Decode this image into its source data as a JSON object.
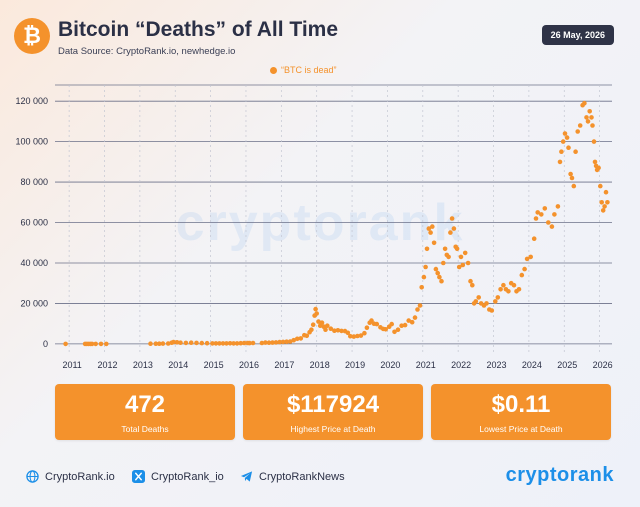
{
  "header": {
    "logo_symbol": "₿",
    "title": "Bitcoin “Deaths” of All Time",
    "source": "Data Source: CryptoRank.io, newhedge.io",
    "date": "26 May, 2026"
  },
  "watermark": "cryptorank",
  "chart_data": {
    "type": "scatter",
    "title": "Bitcoin “Deaths” of All Time",
    "xlabel": "",
    "ylabel": "",
    "xlim": [
      2010.6,
      2026.35
    ],
    "ylim": [
      -5000,
      128000
    ],
    "x_ticks": [
      "2011",
      "2012",
      "2013",
      "2014",
      "2015",
      "2016",
      "2017",
      "2018",
      "2019",
      "2020",
      "2021",
      "2022",
      "2023",
      "2024",
      "2025",
      "2026"
    ],
    "y_ticks": [
      {
        "value": 0,
        "label": "0"
      },
      {
        "value": 20000,
        "label": "20 000"
      },
      {
        "value": 40000,
        "label": "40 000"
      },
      {
        "value": 60000,
        "label": "60 000"
      },
      {
        "value": 80000,
        "label": "80 000"
      },
      {
        "value": 100000,
        "label": "100 000"
      },
      {
        "value": 120000,
        "label": "120 000"
      }
    ],
    "grid": true,
    "legend_position": "top-center",
    "series": [
      {
        "name": "“BTC is dead”",
        "color": "#f4922c",
        "points": [
          [
            2010.9,
            0.3
          ],
          [
            2011.45,
            15
          ],
          [
            2011.5,
            18
          ],
          [
            2011.55,
            14
          ],
          [
            2011.6,
            10
          ],
          [
            2011.65,
            6
          ],
          [
            2011.75,
            4
          ],
          [
            2011.9,
            3
          ],
          [
            2012.05,
            5
          ],
          [
            2013.3,
            100
          ],
          [
            2013.45,
            110
          ],
          [
            2013.55,
            100
          ],
          [
            2013.65,
            120
          ],
          [
            2013.8,
            200
          ],
          [
            2013.9,
            600
          ],
          [
            2013.95,
            900
          ],
          [
            2014.05,
            800
          ],
          [
            2014.15,
            600
          ],
          [
            2014.3,
            500
          ],
          [
            2014.45,
            600
          ],
          [
            2014.6,
            500
          ],
          [
            2014.75,
            380
          ],
          [
            2014.9,
            340
          ],
          [
            2015.05,
            230
          ],
          [
            2015.15,
            250
          ],
          [
            2015.25,
            240
          ],
          [
            2015.35,
            230
          ],
          [
            2015.45,
            230
          ],
          [
            2015.55,
            270
          ],
          [
            2015.65,
            230
          ],
          [
            2015.75,
            250
          ],
          [
            2015.85,
            360
          ],
          [
            2015.95,
            430
          ],
          [
            2016.05,
            420
          ],
          [
            2016.1,
            380
          ],
          [
            2016.2,
            420
          ],
          [
            2016.45,
            450
          ],
          [
            2016.55,
            650
          ],
          [
            2016.65,
            600
          ],
          [
            2016.75,
            650
          ],
          [
            2016.85,
            740
          ],
          [
            2016.95,
            900
          ],
          [
            2017.05,
            1000
          ],
          [
            2017.15,
            1100
          ],
          [
            2017.25,
            1200
          ],
          [
            2017.35,
            1800
          ],
          [
            2017.45,
            2500
          ],
          [
            2017.55,
            2700
          ],
          [
            2017.65,
            4300
          ],
          [
            2017.72,
            4000
          ],
          [
            2017.8,
            5800
          ],
          [
            2017.85,
            7000
          ],
          [
            2017.9,
            9500
          ],
          [
            2017.94,
            14000
          ],
          [
            2017.97,
            17200
          ],
          [
            2018.0,
            15000
          ],
          [
            2018.05,
            11000
          ],
          [
            2018.1,
            9000
          ],
          [
            2018.15,
            10500
          ],
          [
            2018.2,
            8500
          ],
          [
            2018.25,
            7000
          ],
          [
            2018.3,
            9000
          ],
          [
            2018.4,
            7500
          ],
          [
            2018.5,
            6500
          ],
          [
            2018.6,
            6700
          ],
          [
            2018.7,
            6400
          ],
          [
            2018.8,
            6300
          ],
          [
            2018.88,
            5500
          ],
          [
            2018.95,
            3800
          ],
          [
            2019.05,
            3600
          ],
          [
            2019.15,
            3900
          ],
          [
            2019.25,
            4100
          ],
          [
            2019.35,
            5300
          ],
          [
            2019.42,
            8000
          ],
          [
            2019.5,
            10500
          ],
          [
            2019.55,
            11500
          ],
          [
            2019.62,
            10000
          ],
          [
            2019.7,
            9800
          ],
          [
            2019.8,
            8200
          ],
          [
            2019.88,
            7400
          ],
          [
            2019.95,
            7200
          ],
          [
            2020.05,
            8500
          ],
          [
            2020.12,
            9800
          ],
          [
            2020.2,
            6000
          ],
          [
            2020.3,
            7000
          ],
          [
            2020.4,
            9000
          ],
          [
            2020.5,
            9300
          ],
          [
            2020.6,
            11500
          ],
          [
            2020.7,
            10700
          ],
          [
            2020.78,
            13000
          ],
          [
            2020.85,
            17000
          ],
          [
            2020.92,
            19000
          ],
          [
            2020.97,
            28000
          ],
          [
            2021.03,
            33000
          ],
          [
            2021.08,
            38000
          ],
          [
            2021.12,
            47000
          ],
          [
            2021.17,
            57000
          ],
          [
            2021.22,
            55000
          ],
          [
            2021.27,
            58000
          ],
          [
            2021.32,
            50000
          ],
          [
            2021.37,
            37000
          ],
          [
            2021.42,
            35000
          ],
          [
            2021.47,
            33000
          ],
          [
            2021.53,
            31000
          ],
          [
            2021.58,
            40000
          ],
          [
            2021.63,
            47000
          ],
          [
            2021.68,
            44000
          ],
          [
            2021.73,
            43000
          ],
          [
            2021.78,
            55000
          ],
          [
            2021.83,
            62000
          ],
          [
            2021.88,
            57000
          ],
          [
            2021.93,
            48000
          ],
          [
            2021.97,
            47000
          ],
          [
            2022.03,
            38000
          ],
          [
            2022.08,
            43000
          ],
          [
            2022.13,
            39000
          ],
          [
            2022.2,
            45000
          ],
          [
            2022.28,
            40000
          ],
          [
            2022.35,
            31000
          ],
          [
            2022.4,
            29000
          ],
          [
            2022.45,
            20000
          ],
          [
            2022.5,
            21000
          ],
          [
            2022.58,
            23000
          ],
          [
            2022.65,
            20000
          ],
          [
            2022.73,
            19000
          ],
          [
            2022.8,
            20000
          ],
          [
            2022.88,
            17000
          ],
          [
            2022.95,
            16500
          ],
          [
            2023.05,
            21000
          ],
          [
            2023.12,
            23000
          ],
          [
            2023.2,
            27000
          ],
          [
            2023.28,
            29000
          ],
          [
            2023.35,
            27000
          ],
          [
            2023.42,
            26000
          ],
          [
            2023.5,
            30000
          ],
          [
            2023.58,
            29000
          ],
          [
            2023.65,
            26000
          ],
          [
            2023.72,
            27000
          ],
          [
            2023.8,
            34000
          ],
          [
            2023.88,
            37000
          ],
          [
            2023.95,
            42000
          ],
          [
            2024.05,
            43000
          ],
          [
            2024.15,
            52000
          ],
          [
            2024.2,
            62000
          ],
          [
            2024.25,
            65000
          ],
          [
            2024.35,
            64000
          ],
          [
            2024.45,
            67000
          ],
          [
            2024.55,
            60000
          ],
          [
            2024.65,
            58000
          ],
          [
            2024.72,
            64000
          ],
          [
            2024.82,
            68000
          ],
          [
            2024.88,
            90000
          ],
          [
            2024.92,
            95000
          ],
          [
            2024.97,
            100000
          ],
          [
            2025.02,
            104000
          ],
          [
            2025.08,
            102000
          ],
          [
            2025.12,
            97000
          ],
          [
            2025.18,
            84000
          ],
          [
            2025.22,
            82000
          ],
          [
            2025.27,
            78000
          ],
          [
            2025.32,
            95000
          ],
          [
            2025.38,
            105000
          ],
          [
            2025.45,
            108000
          ],
          [
            2025.52,
            118000
          ],
          [
            2025.57,
            119000
          ],
          [
            2025.63,
            112000
          ],
          [
            2025.67,
            110000
          ],
          [
            2025.72,
            115000
          ],
          [
            2025.77,
            112000
          ],
          [
            2025.8,
            108000
          ],
          [
            2025.84,
            100000
          ],
          [
            2025.87,
            90000
          ],
          [
            2025.9,
            88000
          ],
          [
            2025.93,
            86000
          ],
          [
            2025.97,
            87000
          ],
          [
            2026.02,
            78000
          ],
          [
            2026.06,
            70000
          ],
          [
            2026.1,
            66000
          ],
          [
            2026.14,
            68000
          ],
          [
            2026.18,
            75000
          ],
          [
            2026.22,
            70000
          ]
        ]
      }
    ]
  },
  "stats": [
    {
      "value": "472",
      "label": "Total Deaths"
    },
    {
      "value": "$117924",
      "label": "Highest Price at Death"
    },
    {
      "value": "$0.11",
      "label": "Lowest Price at Death"
    }
  ],
  "footer": {
    "website": "CryptoRank.io",
    "x_handle": "CryptoRank_io",
    "telegram": "CryptoRankNews",
    "brand": "cryptorank"
  }
}
